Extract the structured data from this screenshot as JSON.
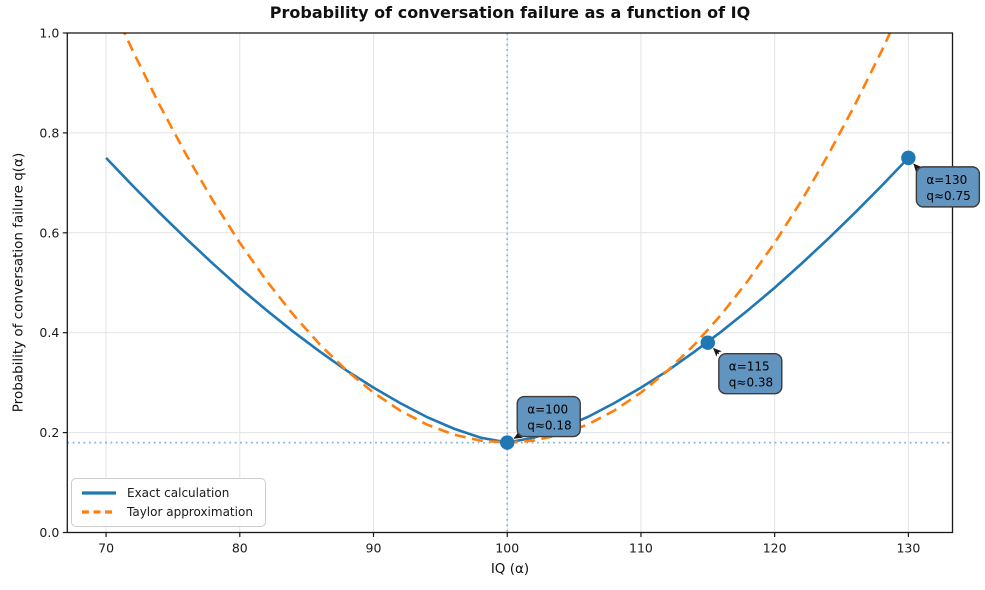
{
  "chart_data": {
    "type": "line",
    "title": "Probability of conversation failure as a function of IQ",
    "xlabel": "IQ (α)",
    "ylabel": "Probability of conversation failure q(α)",
    "xlim": [
      67.1,
      133.3
    ],
    "ylim": [
      0,
      1
    ],
    "xticks": [
      70,
      80,
      90,
      100,
      110,
      120,
      130
    ],
    "ytick_labels": [
      "0.0",
      "0.2",
      "0.4",
      "0.6",
      "0.8",
      "1.0"
    ],
    "ytick_values": [
      0,
      0.2,
      0.4,
      0.6,
      0.8,
      1.0
    ],
    "grid": true,
    "legend_position": "lower left",
    "x": [
      70,
      72,
      74,
      76,
      78,
      80,
      82,
      84,
      86,
      88,
      90,
      92,
      94,
      96,
      98,
      100,
      102,
      104,
      106,
      108,
      110,
      112,
      114,
      116,
      118,
      120,
      122,
      124,
      126,
      128,
      130
    ],
    "series": [
      {
        "name": "Exact calculation",
        "color": "#1f77b4",
        "style": "solid",
        "values": [
          0.75,
          0.694,
          0.64,
          0.588,
          0.538,
          0.49,
          0.445,
          0.402,
          0.362,
          0.324,
          0.29,
          0.259,
          0.231,
          0.208,
          0.19,
          0.18,
          0.19,
          0.208,
          0.231,
          0.259,
          0.29,
          0.324,
          0.362,
          0.402,
          0.445,
          0.49,
          0.538,
          0.588,
          0.64,
          0.694,
          0.75
        ]
      },
      {
        "name": "Taylor approximation",
        "color": "#ff7f0e",
        "style": "dashed",
        "values": [
          1.08,
          0.964,
          0.856,
          0.756,
          0.664,
          0.58,
          0.504,
          0.436,
          0.376,
          0.324,
          0.28,
          0.244,
          0.216,
          0.196,
          0.184,
          0.18,
          0.184,
          0.196,
          0.216,
          0.244,
          0.28,
          0.324,
          0.376,
          0.436,
          0.504,
          0.58,
          0.664,
          0.756,
          0.856,
          0.964,
          1.08
        ]
      }
    ],
    "markers": [
      {
        "x": 100,
        "y": 0.18
      },
      {
        "x": 115,
        "y": 0.38
      },
      {
        "x": 130,
        "y": 0.75
      }
    ],
    "annotations": [
      {
        "lines": [
          "α=100",
          "q≈0.18"
        ],
        "x": 100,
        "y": 0.18,
        "offset": [
          10,
          -46
        ]
      },
      {
        "lines": [
          "α=115",
          "q≈0.38"
        ],
        "x": 115,
        "y": 0.38,
        "offset": [
          11,
          11
        ]
      },
      {
        "lines": [
          "α=130",
          "q≈0.75"
        ],
        "x": 130,
        "y": 0.75,
        "offset": [
          8,
          9
        ]
      }
    ],
    "guides": {
      "vline_x": 100,
      "hline_y": 0.18
    },
    "colors": {
      "guide": "#85b4da",
      "grid": "#e3e3e3",
      "spine": "#1a1a1a",
      "tick_text": "#1a1a1a",
      "marker": "#1f77b4",
      "annotation_fill": "#6194bf",
      "annotation_border": "#3c3c3c",
      "annotation_text": "#000000",
      "arrow": "#1a1a1a"
    }
  }
}
